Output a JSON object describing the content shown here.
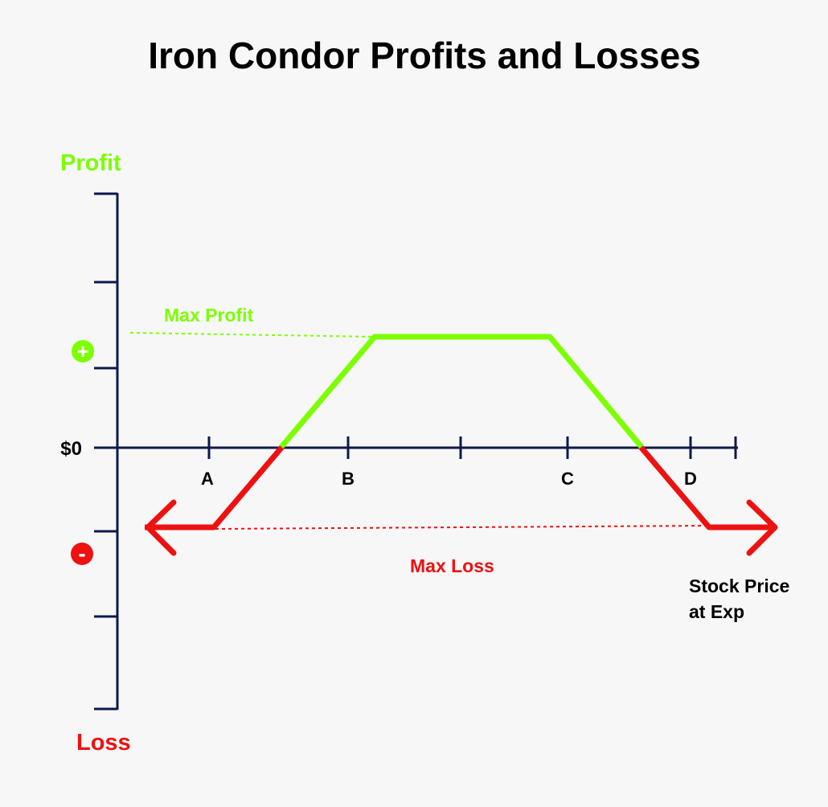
{
  "title": "Iron Condor Profits and Losses",
  "axis": {
    "y_top_label": "Profit",
    "y_bottom_label": "Loss",
    "zero_label": "$0",
    "plus_symbol": "+",
    "minus_symbol": "-",
    "x_label_line1": "Stock Price",
    "x_label_line2": "at Exp"
  },
  "strikes": [
    "A",
    "B",
    "C",
    "D"
  ],
  "annotations": {
    "max_profit": "Max Profit",
    "max_loss": "Max Loss"
  },
  "colors": {
    "profit": "#7cff00",
    "loss": "#ee1111",
    "axis": "#0c1a4b",
    "text": "#000000",
    "background": "#f7f7f7"
  }
}
